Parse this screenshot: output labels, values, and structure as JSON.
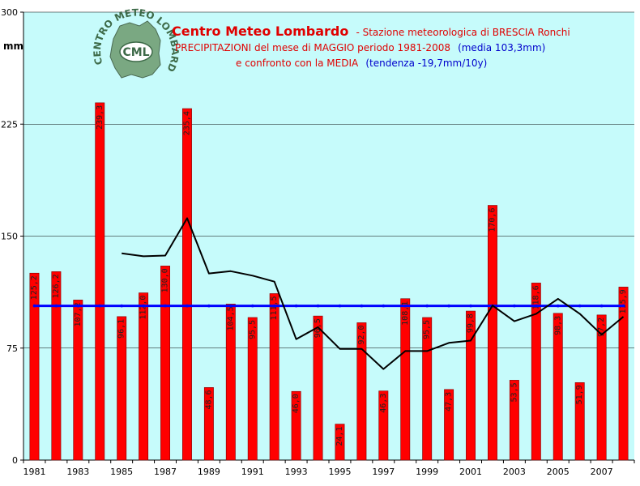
{
  "colors": {
    "plot_bg": "#c6fbfb",
    "bar": "#ff0000",
    "bar_edge": "#800000",
    "mean_line": "#0000ff",
    "trend_line": "#000000",
    "title_red": "#e00000",
    "title_blue": "#0000cc"
  },
  "header": {
    "title": "Centro Meteo Lombardo",
    "title_suffix": "- Stazione meteorologica di BRESCIA Ronchi",
    "line2_main": "PRECIPITAZIONI del mese di MAGGIO periodo 1981-2008",
    "line2_mean": "(media 103,3mm)",
    "line3_main": "e confronto con la MEDIA",
    "line3_trend": "(tendenza -19,7mm/10y)"
  },
  "logo": {
    "arc_text": "CENTRO METEO LOMBARDO",
    "initials": "CML",
    "icon": "lombardy-map-logo-icon"
  },
  "chart_data": {
    "type": "bar",
    "title": "PRECIPITAZIONI del mese di MAGGIO periodo 1981-2008",
    "ylabel": "mm",
    "ylim": [
      0,
      300
    ],
    "yticks": [
      "0",
      "75",
      "150",
      "225",
      "300"
    ],
    "xticks": [
      "1981",
      "1983",
      "1985",
      "1987",
      "1989",
      "1991",
      "1993",
      "1995",
      "1997",
      "1999",
      "2001",
      "2003",
      "2005",
      "2007"
    ],
    "categories": [
      "1981",
      "1982",
      "1983",
      "1984",
      "1985",
      "1986",
      "1987",
      "1988",
      "1989",
      "1990",
      "1991",
      "1992",
      "1993",
      "1994",
      "1995",
      "1996",
      "1997",
      "1998",
      "1999",
      "2000",
      "2001",
      "2002",
      "2003",
      "2004",
      "2005",
      "2006",
      "2007",
      "2008"
    ],
    "series": [
      {
        "type": "bar",
        "values": [
          125.2,
          126.2,
          107.2,
          239.3,
          96.1,
          112.0,
          130.0,
          235.4,
          48.6,
          104.5,
          95.5,
          111.5,
          46.0,
          96.5,
          24.1,
          92.0,
          46.3,
          108.1,
          95.5,
          47.3,
          99.8,
          170.6,
          53.5,
          118.6,
          98.3,
          51.9,
          97.2,
          115.9
        ],
        "labels": [
          "125,2",
          "126,2",
          "107,2",
          "239,3",
          "96,1",
          "112,0",
          "130,0",
          "235,4",
          "48,6",
          "104,5",
          "95,5",
          "111,5",
          "46,0",
          "96,5",
          "24,1",
          "92,0",
          "46,3",
          "108,1",
          "95,5",
          "47,3",
          "99,8",
          "170,6",
          "53,5",
          "118,6",
          "98,3",
          "51,9",
          "97,2",
          "115,9"
        ]
      },
      {
        "type": "line",
        "values": [
          103.3,
          103.3,
          103.3,
          103.3,
          103.3,
          103.3,
          103.3,
          103.3,
          103.3,
          103.3,
          103.3,
          103.3,
          103.3,
          103.3,
          103.3,
          103.3,
          103.3,
          103.3,
          103.3,
          103.3,
          103.3,
          103.3,
          103.3,
          103.3,
          103.3,
          103.3,
          103.3,
          103.3
        ]
      },
      {
        "type": "line",
        "values": [
          null,
          null,
          null,
          null,
          138.5,
          136.5,
          137,
          162,
          125,
          126.5,
          123.5,
          119.5,
          81,
          89,
          74.5,
          74.5,
          61,
          73,
          73,
          78.5,
          80,
          103.5,
          93,
          98,
          108,
          98,
          84,
          96
        ]
      }
    ]
  }
}
